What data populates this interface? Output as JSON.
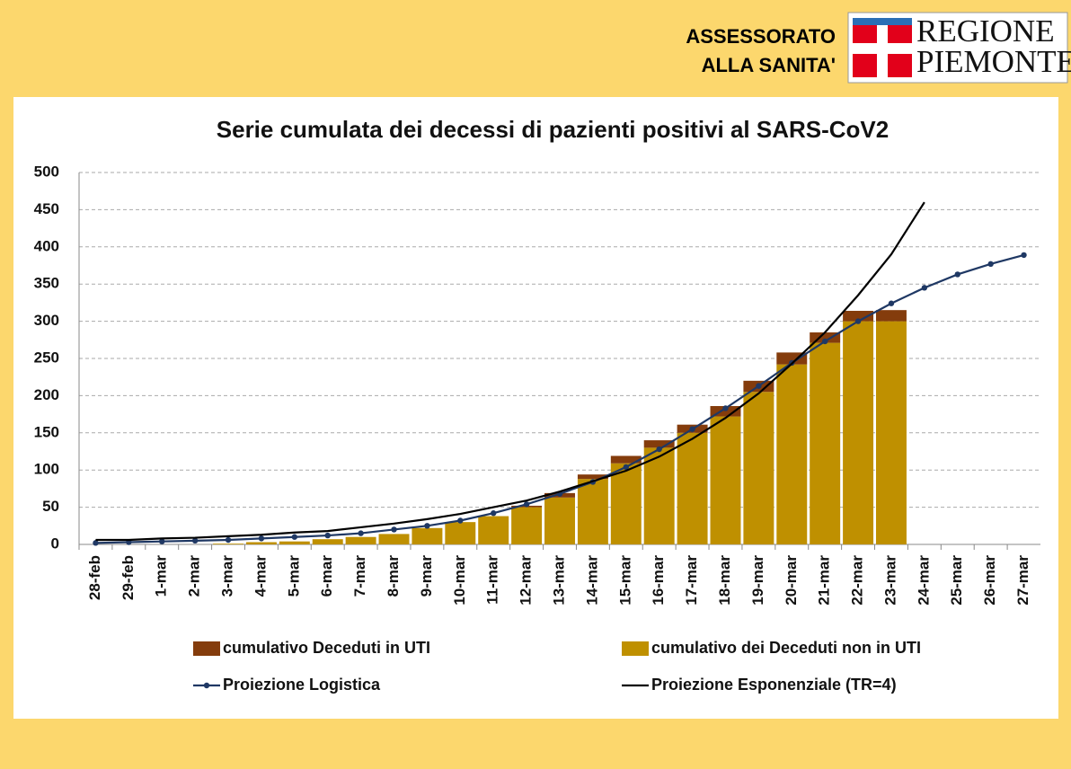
{
  "header": {
    "line1": "ASSESSORATO",
    "line2": "ALLA SANITA'",
    "logo_line1": "REGIONE",
    "logo_line2": "PIEMONTE"
  },
  "chart_data": {
    "type": "bar",
    "title": "Serie cumulata dei decessi di pazienti positivi al SARS-CoV2",
    "categories": [
      "28-feb",
      "29-feb",
      "1-mar",
      "2-mar",
      "3-mar",
      "4-mar",
      "5-mar",
      "6-mar",
      "7-mar",
      "8-mar",
      "9-mar",
      "10-mar",
      "11-mar",
      "12-mar",
      "13-mar",
      "14-mar",
      "15-mar",
      "16-mar",
      "17-mar",
      "18-mar",
      "19-mar",
      "20-mar",
      "21-mar",
      "22-mar",
      "23-mar",
      "24-mar",
      "25-mar",
      "26-mar",
      "27-mar"
    ],
    "series": [
      {
        "name": "cumulativo dei Deceduti non in UTI",
        "type": "bar",
        "color": "#bf9000",
        "values": [
          0,
          0,
          0,
          0,
          1,
          3,
          4,
          7,
          10,
          14,
          22,
          30,
          38,
          50,
          63,
          88,
          109,
          130,
          150,
          172,
          205,
          242,
          271,
          300,
          300,
          null,
          null,
          null,
          null
        ]
      },
      {
        "name": "cumulativo Deceduti in UTI",
        "type": "bar",
        "color": "#843c0c",
        "values": [
          0,
          0,
          0,
          0,
          0,
          0,
          0,
          0,
          0,
          0,
          0,
          0,
          0,
          2,
          6,
          6,
          10,
          10,
          11,
          14,
          15,
          16,
          14,
          14,
          15,
          null,
          null,
          null,
          null
        ]
      },
      {
        "name": "Proiezione Logistica",
        "type": "line",
        "color": "#1f3864",
        "marker": true,
        "values": [
          2,
          3,
          4,
          5,
          6,
          8,
          10,
          12,
          15,
          20,
          25,
          32,
          42,
          54,
          68,
          84,
          104,
          128,
          155,
          183,
          213,
          244,
          273,
          300,
          324,
          345,
          363,
          377,
          389
        ]
      },
      {
        "name": "Proiezione Esponenziale (TR=4)",
        "type": "line",
        "color": "#000000",
        "marker": false,
        "values": [
          6,
          6,
          8,
          9,
          11,
          13,
          16,
          18,
          23,
          28,
          34,
          41,
          50,
          59,
          71,
          85,
          99,
          118,
          142,
          170,
          203,
          243,
          285,
          335,
          390,
          460,
          null,
          null,
          null
        ]
      }
    ],
    "ylim": [
      0,
      500
    ],
    "yticks": [
      0,
      50,
      100,
      150,
      200,
      250,
      300,
      350,
      400,
      450,
      500
    ],
    "grid": true
  }
}
